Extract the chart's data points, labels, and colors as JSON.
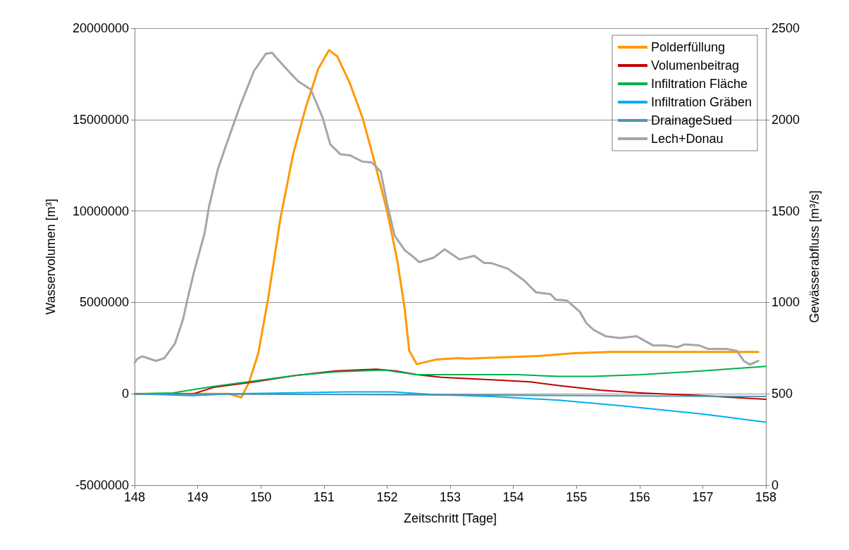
{
  "chart_data": {
    "type": "line",
    "xlabel": "Zeitschritt [Tage]",
    "ylabel": "Wasservolumen [m³]",
    "y2label": "Gewässerabfluss [m³/s]",
    "xlim": [
      148,
      158
    ],
    "xticks": [
      148,
      149,
      150,
      151,
      152,
      153,
      154,
      155,
      156,
      157,
      158
    ],
    "ylim": [
      -5000000,
      20000000
    ],
    "yticks": [
      -5000000,
      0,
      5000000,
      10000000,
      15000000,
      20000000
    ],
    "y2lim": [
      0,
      2500
    ],
    "y2ticks": [
      0,
      500,
      1000,
      1500,
      2000,
      2500
    ],
    "grid": "y",
    "legend": "top right",
    "marker": "none",
    "line_style": "solid",
    "series": [
      {
        "name": "Polderfüllung",
        "color": "#ff9900",
        "x": [
          148,
          149,
          149.49,
          149.69,
          149.81,
          149.96,
          150.12,
          150.31,
          150.51,
          150.71,
          150.91,
          151.08,
          151.21,
          151.41,
          151.61,
          151.8,
          152,
          152.16,
          152.28,
          152.35,
          152.47,
          152.78,
          153.13,
          153.26,
          154.4,
          154.97,
          155.53,
          156.29,
          157.88
        ],
        "values": [
          0,
          0,
          0,
          -200000,
          600000,
          2220000,
          5300000,
          9590000,
          13080000,
          15640000,
          17780000,
          18800000,
          18460000,
          16990000,
          15110000,
          12710000,
          10000000,
          7330000,
          4620000,
          2370000,
          1620000,
          1880000,
          1950000,
          1920000,
          2070000,
          2220000,
          2290000,
          2290000,
          2290000
        ]
      },
      {
        "name": "Volumenbeitrag",
        "color": "#c00000",
        "x": [
          148,
          148.93,
          149.25,
          149.9,
          150.54,
          151.18,
          151.83,
          152.14,
          152.47,
          152.86,
          153.76,
          154.27,
          154.72,
          155.37,
          156.02,
          156.98,
          158
        ],
        "values": [
          0,
          0,
          350000,
          650000,
          1000000,
          1250000,
          1350000,
          1250000,
          1050000,
          900000,
          750000,
          650000,
          450000,
          200000,
          50000,
          -100000,
          -300000
        ]
      },
      {
        "name": "Infiltration Fläche",
        "color": "#00b050",
        "x": [
          148,
          148.61,
          149.25,
          150.54,
          151.18,
          151.96,
          152.47,
          153.12,
          154.07,
          154.72,
          155.24,
          156.02,
          156.98,
          158
        ],
        "values": [
          0,
          50000,
          400000,
          1000000,
          1200000,
          1300000,
          1050000,
          1050000,
          1050000,
          950000,
          950000,
          1050000,
          1250000,
          1500000
        ]
      },
      {
        "name": "Infiltration Gräben",
        "color": "#00b0f0",
        "x": [
          148,
          148.93,
          149.52,
          151.38,
          152.09,
          152.79,
          153.66,
          154.72,
          155.69,
          156.98,
          158
        ],
        "values": [
          0,
          -100000,
          0,
          100000,
          100000,
          -50000,
          -150000,
          -350000,
          -650000,
          -1100000,
          -1550000
        ]
      },
      {
        "name": "DrainageSued",
        "color": "#4f94b0",
        "x": [
          148,
          152,
          155,
          158
        ],
        "values": [
          0,
          -50000,
          -100000,
          -150000
        ]
      },
      {
        "name": "Lech+Donau",
        "color": "#a6a6a6",
        "axis": "y2",
        "x": [
          148,
          148.04,
          148.12,
          148.34,
          148.47,
          148.64,
          148.77,
          148.84,
          148.94,
          149.11,
          149.18,
          149.32,
          149.44,
          149.66,
          149.89,
          150.08,
          150.18,
          150.24,
          150.48,
          150.59,
          150.79,
          150.98,
          151.1,
          151.26,
          151.41,
          151.61,
          151.76,
          151.9,
          152,
          152.12,
          152.28,
          152.43,
          152.51,
          152.74,
          152.91,
          153.15,
          153.38,
          153.54,
          153.65,
          153.91,
          154.17,
          154.36,
          154.59,
          154.67,
          154.85,
          155.05,
          155.16,
          155.27,
          155.46,
          155.69,
          155.95,
          156.21,
          156.41,
          156.6,
          156.71,
          156.94,
          157.09,
          157.39,
          157.54,
          157.65,
          157.75,
          157.88
        ],
        "values": [
          670,
          690,
          705,
          680,
          695,
          775,
          910,
          1020,
          1165,
          1380,
          1525,
          1730,
          1850,
          2065,
          2265,
          2360,
          2365,
          2340,
          2250,
          2210,
          2165,
          2010,
          1865,
          1810,
          1805,
          1770,
          1765,
          1715,
          1540,
          1365,
          1285,
          1245,
          1220,
          1245,
          1290,
          1235,
          1255,
          1215,
          1215,
          1185,
          1120,
          1055,
          1045,
          1015,
          1010,
          950,
          885,
          850,
          815,
          805,
          815,
          765,
          765,
          755,
          770,
          765,
          745,
          745,
          735,
          680,
          660,
          680
        ]
      }
    ]
  }
}
